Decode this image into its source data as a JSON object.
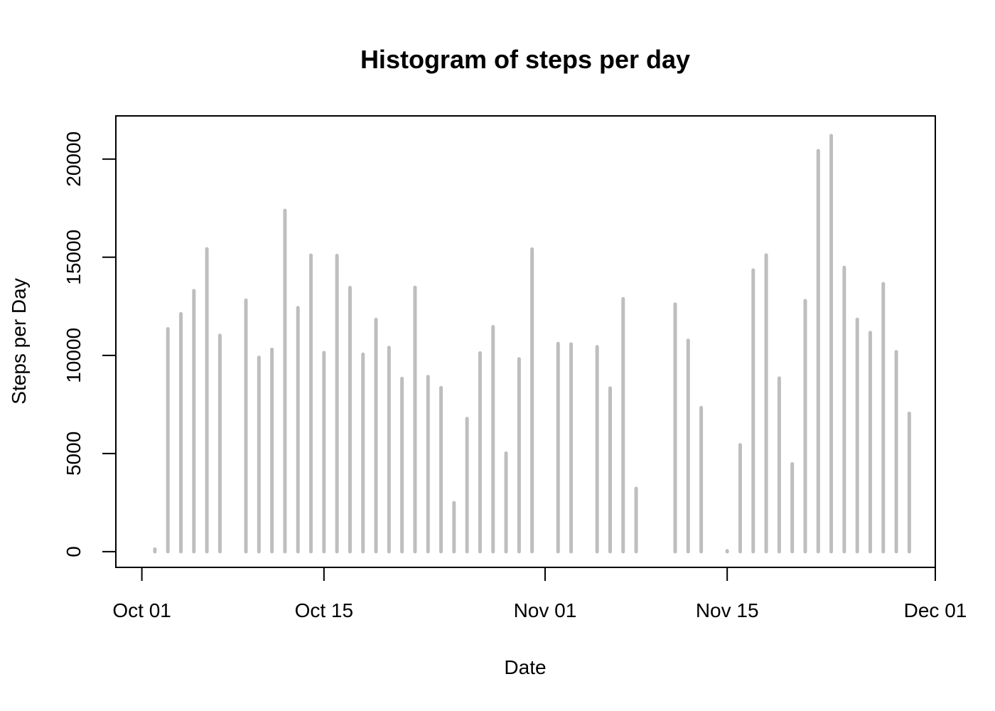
{
  "chart_data": {
    "type": "bar",
    "title": "Histogram of steps per day",
    "xlabel": "Date",
    "ylabel": "Steps per Day",
    "xlim": [
      "2012-09-29",
      "2012-12-01"
    ],
    "ylim": [
      -800,
      22200
    ],
    "x_ticks": [
      {
        "date": "2012-10-01",
        "label": "Oct 01"
      },
      {
        "date": "2012-10-15",
        "label": "Oct 15"
      },
      {
        "date": "2012-11-01",
        "label": "Nov 01"
      },
      {
        "date": "2012-11-15",
        "label": "Nov 15"
      },
      {
        "date": "2012-12-01",
        "label": "Dec 01"
      }
    ],
    "y_ticks": [
      0,
      5000,
      10000,
      15000,
      20000
    ],
    "grid": false,
    "bar_color": "#bebebe",
    "x": [
      "2012-10-02",
      "2012-10-03",
      "2012-10-04",
      "2012-10-05",
      "2012-10-06",
      "2012-10-07",
      "2012-10-09",
      "2012-10-10",
      "2012-10-11",
      "2012-10-12",
      "2012-10-13",
      "2012-10-14",
      "2012-10-15",
      "2012-10-16",
      "2012-10-17",
      "2012-10-18",
      "2012-10-19",
      "2012-10-20",
      "2012-10-21",
      "2012-10-22",
      "2012-10-23",
      "2012-10-24",
      "2012-10-25",
      "2012-10-26",
      "2012-10-27",
      "2012-10-28",
      "2012-10-29",
      "2012-10-30",
      "2012-10-31",
      "2012-11-02",
      "2012-11-03",
      "2012-11-05",
      "2012-11-06",
      "2012-11-07",
      "2012-11-08",
      "2012-11-11",
      "2012-11-12",
      "2012-11-13",
      "2012-11-15",
      "2012-11-16",
      "2012-11-17",
      "2012-11-18",
      "2012-11-19",
      "2012-11-20",
      "2012-11-21",
      "2012-11-22",
      "2012-11-23",
      "2012-11-24",
      "2012-11-25",
      "2012-11-26",
      "2012-11-27",
      "2012-11-28",
      "2012-11-29"
    ],
    "values": [
      126,
      11352,
      12116,
      13294,
      15420,
      11015,
      12811,
      9900,
      10304,
      17382,
      12426,
      15098,
      10139,
      15084,
      13452,
      10056,
      11829,
      10395,
      8821,
      13460,
      8918,
      8355,
      2492,
      6778,
      10119,
      11458,
      5018,
      9819,
      15414,
      10600,
      10571,
      10439,
      8334,
      12883,
      3219,
      12608,
      10765,
      7336,
      41,
      5441,
      14339,
      15110,
      8841,
      4472,
      12787,
      20427,
      21194,
      14478,
      11834,
      11162,
      13646,
      10183,
      7047
    ]
  }
}
